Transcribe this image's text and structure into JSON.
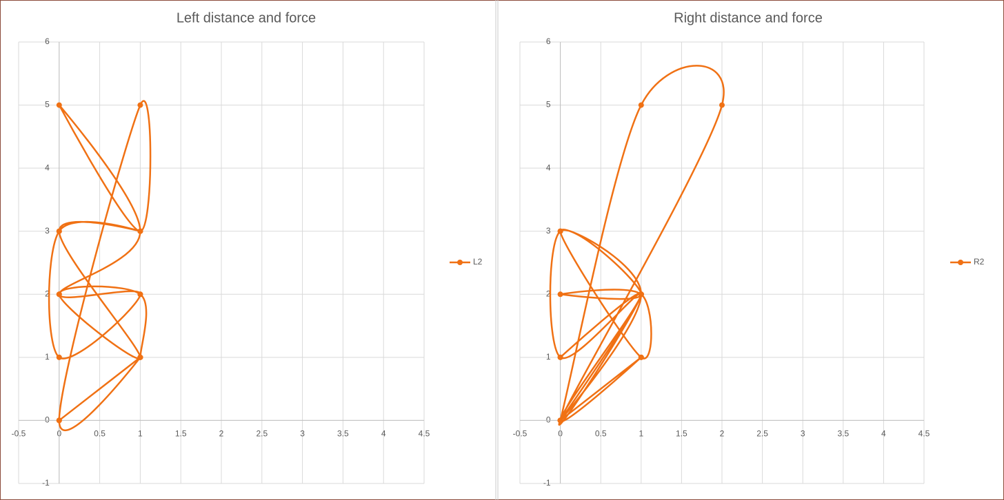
{
  "chart_data": [
    {
      "type": "scatter",
      "title": "Left distance and force",
      "series": [
        {
          "name": "L2",
          "color": "#f07114",
          "x": [
            0,
            1,
            0,
            1,
            0,
            1,
            1,
            0,
            1,
            0,
            1,
            0,
            0,
            1,
            0,
            1,
            0,
            1,
            1
          ],
          "y": [
            0,
            1,
            0,
            1,
            0,
            5,
            3,
            5,
            3,
            2,
            2,
            1,
            3,
            3,
            3,
            1,
            2,
            2,
            1
          ]
        }
      ],
      "xlim": [
        -0.5,
        4.5
      ],
      "xticks": [
        -0.5,
        0,
        0.5,
        1,
        1.5,
        2,
        2.5,
        3,
        3.5,
        4,
        4.5
      ],
      "ylim": [
        -1,
        6
      ],
      "yticks": [
        -1,
        0,
        1,
        2,
        3,
        4,
        5,
        6
      ],
      "grid": true,
      "legend": "right",
      "smooth": true
    },
    {
      "type": "scatter",
      "title": "Right distance and force",
      "series": [
        {
          "name": "R2",
          "color": "#f07114",
          "x": [
            0,
            1,
            2,
            0,
            1,
            0,
            1,
            0,
            1,
            0,
            1,
            1,
            0,
            1,
            0,
            0,
            1,
            0,
            1,
            0
          ],
          "y": [
            0,
            5,
            5,
            0,
            2,
            1,
            2,
            0,
            2,
            3,
            1,
            2,
            2,
            2,
            3,
            1,
            2,
            0,
            1,
            0
          ]
        }
      ],
      "xlim": [
        -0.5,
        4.5
      ],
      "xticks": [
        -0.5,
        0,
        0.5,
        1,
        1.5,
        2,
        2.5,
        3,
        3.5,
        4,
        4.5
      ],
      "ylim": [
        -1,
        6
      ],
      "yticks": [
        -1,
        0,
        1,
        2,
        3,
        4,
        5,
        6
      ],
      "grid": true,
      "legend": "right",
      "smooth": true
    }
  ]
}
